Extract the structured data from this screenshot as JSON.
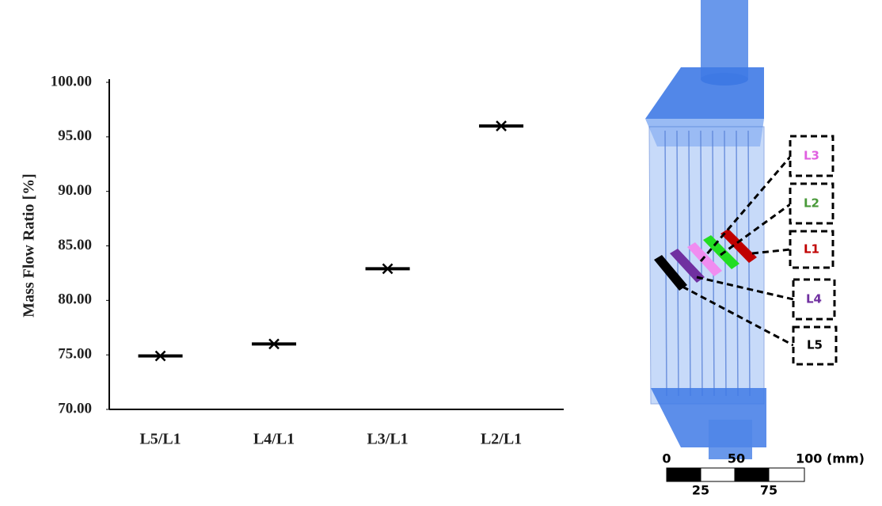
{
  "chart_data": {
    "type": "scatter",
    "y_label": "Mass Flow Ratio [%]",
    "categories": [
      "L5/L1",
      "L4/L1",
      "L3/L1",
      "L2/L1"
    ],
    "values": [
      74.9,
      76.0,
      82.9,
      96.0
    ],
    "color": "#000000",
    "ylim": [
      70,
      100
    ],
    "yticks": [
      {
        "value": 70,
        "label": "70.00"
      },
      {
        "value": 75,
        "label": "75.00"
      },
      {
        "value": 80,
        "label": "80.00"
      },
      {
        "value": 85,
        "label": "85.00"
      },
      {
        "value": 90,
        "label": "90.00"
      },
      {
        "value": 95,
        "label": "95.00"
      },
      {
        "value": 100,
        "label": "100.00"
      }
    ],
    "grid": false
  },
  "diagram": {
    "labels": [
      {
        "text": "L3",
        "color": "#e060e0"
      },
      {
        "text": "L2",
        "color": "#4a9a3a"
      },
      {
        "text": "L1",
        "color": "#c00000"
      },
      {
        "text": "L4",
        "color": "#7030a0"
      },
      {
        "text": "L5",
        "color": "#000000"
      }
    ],
    "scale_top": [
      "0",
      "50",
      "100 (mm)"
    ],
    "scale_bottom": [
      "25",
      "75"
    ]
  }
}
